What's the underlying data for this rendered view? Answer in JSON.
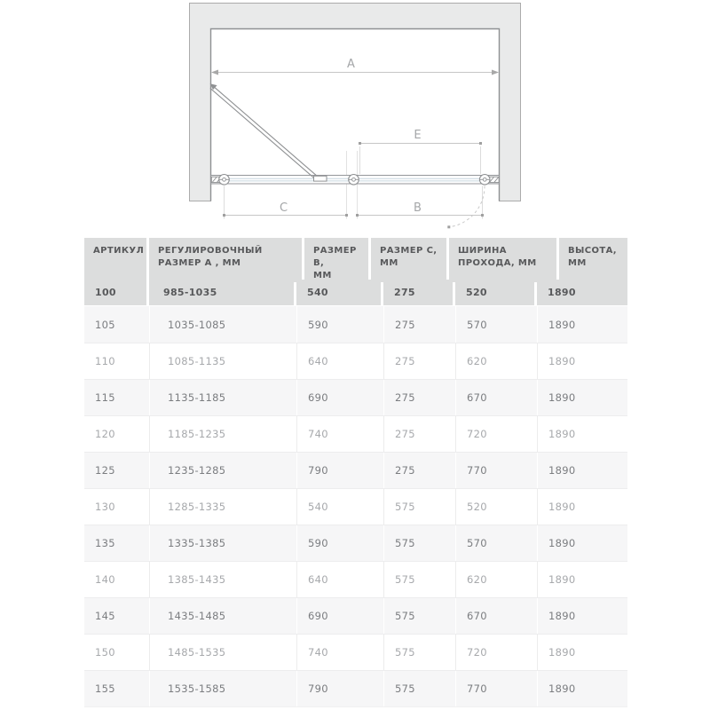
{
  "diagram": {
    "description_labels": {
      "a": "A",
      "b": "B",
      "c": "C",
      "e": "E"
    }
  },
  "table": {
    "columns": [
      {
        "label": "АРТИКУЛ"
      },
      {
        "label": "РЕГУЛИРОВОЧНЫЙ\nРАЗМЕР А , ММ"
      },
      {
        "label": "РАЗМЕР B,\nММ"
      },
      {
        "label": "РАЗМЕР C,\nММ"
      },
      {
        "label": "ШИРИНА\nПРОХОДА, ММ"
      },
      {
        "label": "ВЫСОТА,\nММ"
      }
    ],
    "rows": [
      {
        "highlight": true,
        "cells": [
          "100",
          "985-1035",
          "540",
          "275",
          "520",
          "1890"
        ]
      },
      {
        "highlight": false,
        "cells": [
          "105",
          "1035-1085",
          "590",
          "275",
          "570",
          "1890"
        ]
      },
      {
        "highlight": false,
        "cells": [
          "110",
          "1085-1135",
          "640",
          "275",
          "620",
          "1890"
        ]
      },
      {
        "highlight": false,
        "cells": [
          "115",
          "1135-1185",
          "690",
          "275",
          "670",
          "1890"
        ]
      },
      {
        "highlight": false,
        "cells": [
          "120",
          "1185-1235",
          "740",
          "275",
          "720",
          "1890"
        ]
      },
      {
        "highlight": false,
        "cells": [
          "125",
          "1235-1285",
          "790",
          "275",
          "770",
          "1890"
        ]
      },
      {
        "highlight": false,
        "cells": [
          "130",
          "1285-1335",
          "540",
          "575",
          "520",
          "1890"
        ]
      },
      {
        "highlight": false,
        "cells": [
          "135",
          "1335-1385",
          "590",
          "575",
          "570",
          "1890"
        ]
      },
      {
        "highlight": false,
        "cells": [
          "140",
          "1385-1435",
          "640",
          "575",
          "620",
          "1890"
        ]
      },
      {
        "highlight": false,
        "cells": [
          "145",
          "1435-1485",
          "690",
          "575",
          "670",
          "1890"
        ]
      },
      {
        "highlight": false,
        "cells": [
          "150",
          "1485-1535",
          "740",
          "575",
          "720",
          "1890"
        ]
      },
      {
        "highlight": false,
        "cells": [
          "155",
          "1535-1585",
          "790",
          "575",
          "770",
          "1890"
        ]
      }
    ]
  },
  "colors": {
    "header_bg": "#dcdddd",
    "header_text": "#58595b",
    "row_alt_bg": "#f6f6f7",
    "row_text_dark": "#7b7d80",
    "row_text_light": "#a7a9ac",
    "wall_fill": "#e9eaea",
    "outline_gray": "#8f9193",
    "dimension_gray": "#c6c6c6",
    "glass_blue": "#c7d6df"
  }
}
